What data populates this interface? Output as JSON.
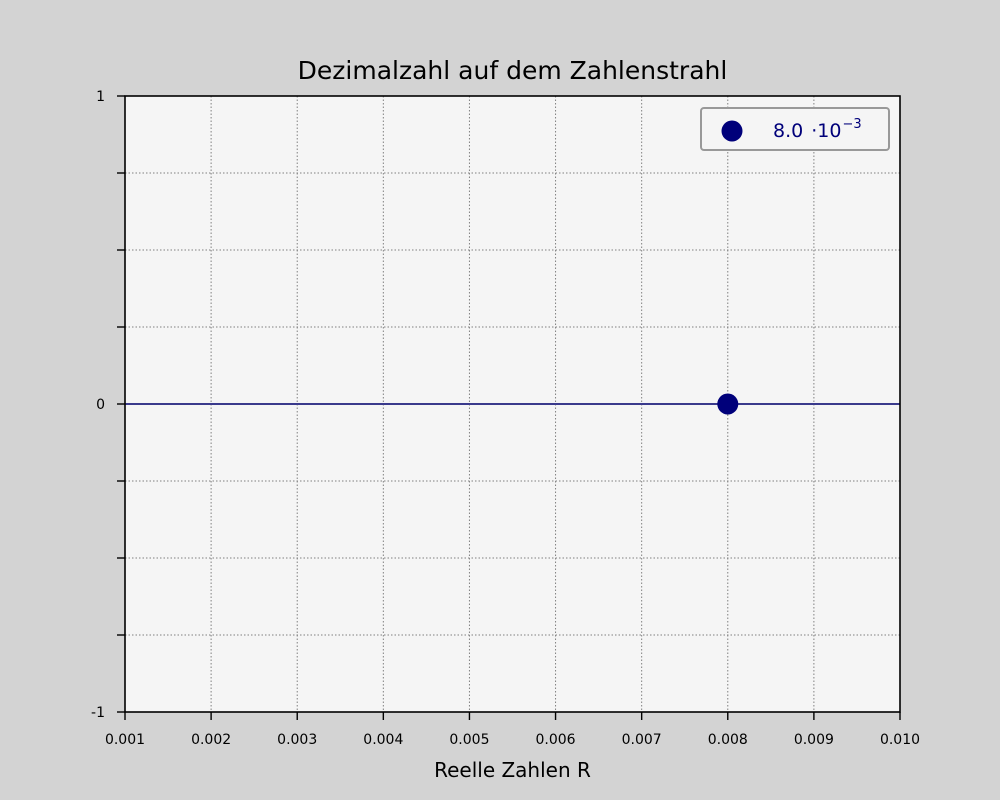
{
  "chart_data": {
    "type": "scatter",
    "title": "Dezimalzahl auf dem Zahlenstrahl",
    "xlabel": "Reelle Zahlen R",
    "ylabel": "",
    "xlim": [
      0.001,
      0.01
    ],
    "ylim": [
      -1,
      1
    ],
    "x_ticks": [
      0.001,
      0.002,
      0.003,
      0.004,
      0.005,
      0.006,
      0.007,
      0.008,
      0.009,
      0.01
    ],
    "x_tick_labels": [
      "0.001",
      "0.002",
      "0.003",
      "0.004",
      "0.005",
      "0.006",
      "0.007",
      "0.008",
      "0.009",
      "0.010"
    ],
    "y_ticks": [
      -1,
      -0.75,
      -0.5,
      -0.25,
      0,
      0.25,
      0.5,
      0.75,
      1
    ],
    "y_tick_labels": [
      "-1",
      "",
      "",
      "",
      "0",
      "",
      "",
      "",
      "1"
    ],
    "grid": true,
    "number_line_y": 0,
    "series": [
      {
        "x": [
          0.008
        ],
        "y": [
          0
        ],
        "legend_label": {
          "mantissa": "8.0",
          "times_base": "·10",
          "exponent": "−3"
        }
      }
    ],
    "legend_position": "upper-right",
    "colors": {
      "figure_background": "#d3d3d3",
      "plot_background": "#f5f5f5",
      "grid": "#808080",
      "axes": "#000000",
      "number_line": "#3a3a8c",
      "point": "#00007a",
      "legend_text": "#00007a",
      "legend_border": "#999999"
    }
  }
}
